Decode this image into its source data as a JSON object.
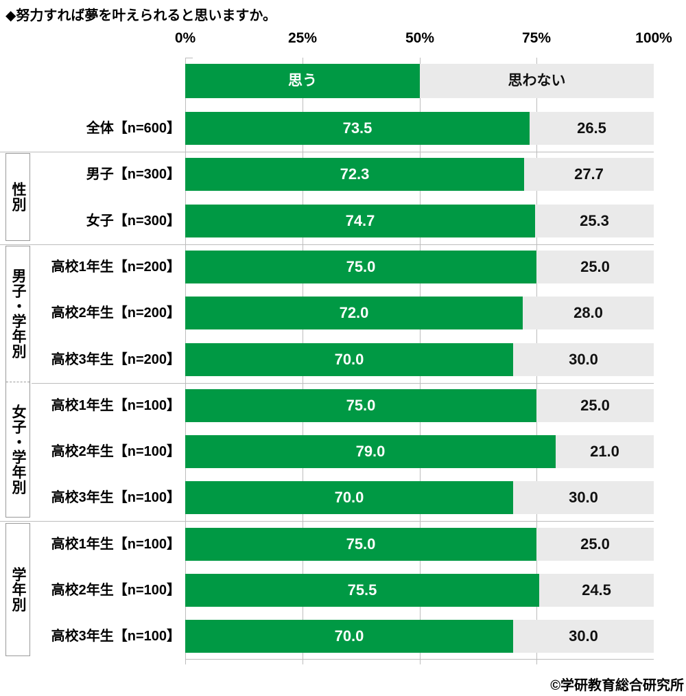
{
  "title": "◆努力すれば夢を叶えられると思いますか。",
  "copyright": "©学研教育総合研究所",
  "colors": {
    "agree_green": "#009944",
    "disagree_gray": "#eaeaea",
    "value_on_green": "#ffffff",
    "value_on_gray": "#111111"
  },
  "chart_data": {
    "type": "bar",
    "orientation": "horizontal",
    "stacked": true,
    "title": "◆努力すれば夢を叶えられると思いますか。",
    "xlim": [
      0,
      100
    ],
    "x_ticks": [
      "0%",
      "25%",
      "50%",
      "75%",
      "100%"
    ],
    "x_tick_values": [
      0,
      25,
      50,
      75,
      100
    ],
    "grid": true,
    "legend": [
      "思う",
      "思わない"
    ],
    "legend_position": "top-bar",
    "categories": [
      "全体【n=600】",
      "男子【n=300】",
      "女子【n=300】",
      "高校1年生【n=200】",
      "高校2年生【n=200】",
      "高校3年生【n=200】",
      "高校1年生【n=100】",
      "高校2年生【n=100】",
      "高校3年生【n=100】",
      "高校1年生【n=100】",
      "高校2年生【n=100】",
      "高校3年生【n=100】"
    ],
    "series": [
      {
        "name": "思う",
        "color": "#009944",
        "values": [
          73.5,
          72.3,
          74.7,
          75.0,
          72.0,
          70.0,
          75.0,
          79.0,
          70.0,
          75.0,
          75.5,
          70.0
        ]
      },
      {
        "name": "思わない",
        "color": "#eaeaea",
        "values": [
          26.5,
          27.7,
          25.3,
          25.0,
          28.0,
          30.0,
          25.0,
          21.0,
          30.0,
          25.0,
          24.5,
          30.0
        ]
      }
    ],
    "row_groups": [
      {
        "label": "",
        "rows": [
          0
        ],
        "box": null
      },
      {
        "label": "性別",
        "rows": [
          1,
          2
        ],
        "box": "box1"
      },
      {
        "label": "男子・学年別",
        "rows": [
          3,
          4,
          5
        ],
        "box": "box2"
      },
      {
        "label": "女子・学年別",
        "rows": [
          6,
          7,
          8
        ],
        "box": "box2"
      },
      {
        "label": "学年別",
        "rows": [
          9,
          10,
          11
        ],
        "box": "box3"
      }
    ]
  }
}
